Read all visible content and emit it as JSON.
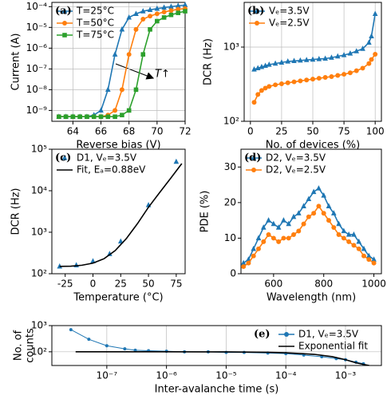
{
  "chart_data": [
    {
      "type": "line",
      "label": "(a)",
      "xlabel": "Reverse bias (V)",
      "ylabel": "Current (A)",
      "yscale": "log",
      "grid": true,
      "legend": "upper left",
      "annotation": "T↑",
      "xlim": [
        62.5,
        72
      ],
      "xticks": [
        64,
        66,
        68,
        70,
        72
      ],
      "ylim": [
        3e-10,
        0.00016
      ],
      "yticks": [
        {
          "value": 1e-09,
          "label": "10⁻⁹"
        },
        {
          "value": 1e-08,
          "label": "10⁻⁸"
        },
        {
          "value": 1e-07,
          "label": "10⁻⁷"
        },
        {
          "value": 1e-06,
          "label": "10⁻⁶"
        },
        {
          "value": 1e-05,
          "label": "10⁻⁵"
        },
        {
          "value": 0.0001,
          "label": "10⁻⁴"
        }
      ],
      "x": [
        63,
        63.5,
        64,
        64.5,
        65,
        65.5,
        66,
        66.5,
        67,
        67.5,
        68,
        68.5,
        69,
        69.5,
        70,
        70.5,
        71,
        71.5,
        72
      ],
      "series": [
        {
          "name": "T=25°C",
          "color": "#1f77b4",
          "marker": "triangle",
          "values": [
            5e-10,
            5e-10,
            5e-10,
            5e-10,
            5e-10,
            6e-10,
            1e-09,
            1e-08,
            5e-07,
            8e-06,
            3e-05,
            4.5e-05,
            6e-05,
            7e-05,
            8e-05,
            9e-05,
            0.0001,
            0.00011,
            0.00012
          ]
        },
        {
          "name": "T=50°C",
          "color": "#ff7f0e",
          "marker": "circle",
          "values": [
            5e-10,
            5e-10,
            5e-10,
            5e-10,
            5e-10,
            5e-10,
            5e-10,
            6e-10,
            1e-09,
            1e-08,
            5e-07,
            8e-06,
            2.5e-05,
            3.5e-05,
            4.5e-05,
            5.5e-05,
            6.5e-05,
            7.5e-05,
            8e-05
          ]
        },
        {
          "name": "T=75°C",
          "color": "#2ca02c",
          "marker": "square",
          "values": [
            5e-10,
            5e-10,
            5e-10,
            5e-10,
            5e-10,
            5e-10,
            5e-10,
            5e-10,
            5e-10,
            6e-10,
            1e-09,
            1e-08,
            5e-07,
            8e-06,
            2e-05,
            3e-05,
            4e-05,
            5e-05,
            6e-05
          ]
        }
      ]
    },
    {
      "type": "line",
      "label": "(b)",
      "xlabel": "No. of devices (%)",
      "ylabel": "DCR (Hz)",
      "yscale": "log",
      "grid": true,
      "legend": "upper left",
      "xlim": [
        -5,
        105
      ],
      "xticks": [
        0,
        25,
        50,
        75,
        100
      ],
      "ylim": [
        100,
        4000
      ],
      "yticks": [
        {
          "value": 100,
          "label": "10²"
        },
        {
          "value": 1000,
          "label": "10³"
        }
      ],
      "x": [
        3,
        6,
        9,
        12,
        15,
        20,
        25,
        30,
        35,
        40,
        45,
        50,
        55,
        60,
        65,
        70,
        75,
        80,
        85,
        90,
        95,
        97,
        100
      ],
      "series": [
        {
          "name": "Vₑ=3.5V",
          "color": "#1f77b4",
          "marker": "triangle",
          "values": [
            500,
            520,
            540,
            560,
            580,
            600,
            620,
            640,
            650,
            660,
            670,
            680,
            690,
            700,
            720,
            750,
            780,
            820,
            880,
            950,
            1150,
            1400,
            2800
          ]
        },
        {
          "name": "Vₑ=2.5V",
          "color": "#ff7f0e",
          "marker": "circle",
          "values": [
            180,
            230,
            260,
            280,
            295,
            310,
            320,
            330,
            340,
            350,
            360,
            370,
            380,
            390,
            400,
            415,
            430,
            450,
            480,
            520,
            600,
            680,
            800
          ]
        }
      ]
    },
    {
      "type": "scatter",
      "label": "(c)",
      "xlabel": "Temperature (°C)",
      "ylabel": "DCR (Hz)",
      "yscale": "log",
      "grid": false,
      "legend": "upper left",
      "xlim": [
        -37,
        83
      ],
      "xticks": [
        -25,
        0,
        25,
        50,
        75
      ],
      "ylim": [
        100,
        100000
      ],
      "yticks": [
        {
          "value": 100,
          "label": "10²"
        },
        {
          "value": 1000,
          "label": "10³"
        },
        {
          "value": 10000,
          "label": "10⁴"
        },
        {
          "value": 100000,
          "label": "10⁵"
        }
      ],
      "series": [
        {
          "name": "D1, Vₑ=3.5V",
          "color": "#1f77b4",
          "marker": "triangle",
          "style": "markers",
          "x": [
            -30,
            -15,
            0,
            15,
            25,
            50,
            75
          ],
          "values": [
            150,
            160,
            200,
            300,
            600,
            4500,
            50000
          ]
        },
        {
          "name": "Fit, Eₐ=0.88eV",
          "color": "#000000",
          "style": "line",
          "x": [
            -30,
            -20,
            -10,
            0,
            10,
            20,
            30,
            40,
            50,
            60,
            70,
            80
          ],
          "values": [
            150,
            152,
            160,
            180,
            230,
            360,
            700,
            1600,
            4000,
            9000,
            20000,
            45000
          ]
        }
      ]
    },
    {
      "type": "line",
      "label": "(d)",
      "xlabel": "Wavelength (nm)",
      "ylabel": "PDE (%)",
      "grid": false,
      "legend": "upper left",
      "xlim": [
        470,
        1030
      ],
      "xticks": [
        600,
        800,
        1000
      ],
      "ylim": [
        0,
        35
      ],
      "yticks": [
        0,
        10,
        20,
        30
      ],
      "x": [
        480,
        500,
        520,
        540,
        560,
        580,
        600,
        620,
        640,
        660,
        680,
        700,
        720,
        740,
        760,
        780,
        800,
        820,
        840,
        860,
        880,
        900,
        920,
        940,
        960,
        980,
        1000
      ],
      "series": [
        {
          "name": "D2, Vₑ=3.5V",
          "color": "#1f77b4",
          "marker": "triangle",
          "values": [
            3,
            4,
            7,
            10,
            13,
            15,
            14,
            13,
            15,
            14,
            16,
            17,
            19,
            21,
            23,
            24,
            22,
            19,
            17,
            14,
            12,
            11,
            11,
            9,
            7,
            5,
            4
          ]
        },
        {
          "name": "D2, Vₑ=2.5V",
          "color": "#ff7f0e",
          "marker": "circle",
          "values": [
            2,
            3,
            5,
            7,
            9,
            11,
            10,
            9,
            10,
            10,
            11,
            12,
            14,
            16,
            17,
            19,
            17,
            15,
            13,
            11,
            10,
            9,
            8,
            7,
            5,
            4,
            3
          ]
        }
      ]
    },
    {
      "type": "line",
      "label": "(e)",
      "xlabel": "Inter-avalanche time (s)",
      "ylabel": [
        "No. of",
        "counts"
      ],
      "xscale": "log",
      "yscale": "log",
      "grid": true,
      "legend": "upper right",
      "xlim": [
        1.2e-08,
        0.004
      ],
      "xticks": [
        {
          "value": 1e-07,
          "label": "10⁻⁷"
        },
        {
          "value": 1e-06,
          "label": "10⁻⁶"
        },
        {
          "value": 1e-05,
          "label": "10⁻⁵"
        },
        {
          "value": 0.0001,
          "label": "10⁻⁴"
        },
        {
          "value": 0.001,
          "label": "10⁻³"
        }
      ],
      "ylim": [
        30,
        1000
      ],
      "yticks": [
        {
          "value": 100,
          "label": "10²"
        },
        {
          "value": 1000,
          "label": "10³"
        }
      ],
      "series": [
        {
          "name": "D1, Vₑ=3.5V",
          "color": "#1f77b4",
          "marker": "circle",
          "x": [
            2.5e-08,
            5e-08,
            1e-07,
            2e-07,
            3e-07,
            5e-07,
            1e-06,
            2e-06,
            5e-06,
            1e-05,
            2e-05,
            5e-05,
            0.0001,
            0.0002,
            0.0004,
            0.0007,
            0.001,
            0.0015,
            0.002
          ],
          "values": [
            700,
            300,
            170,
            130,
            115,
            110,
            105,
            100,
            100,
            95,
            95,
            90,
            85,
            75,
            65,
            55,
            50,
            40,
            35
          ]
        },
        {
          "name": "Exponential fit",
          "color": "#000000",
          "style": "line",
          "x": [
            3e-08,
            1e-06,
            1e-05,
            5e-05,
            0.0001,
            0.0003,
            0.0006,
            0.001,
            0.0015,
            0.002,
            0.0025
          ],
          "values": [
            100,
            100,
            99,
            96,
            92,
            80,
            65,
            50,
            38,
            33,
            30
          ]
        }
      ]
    }
  ]
}
